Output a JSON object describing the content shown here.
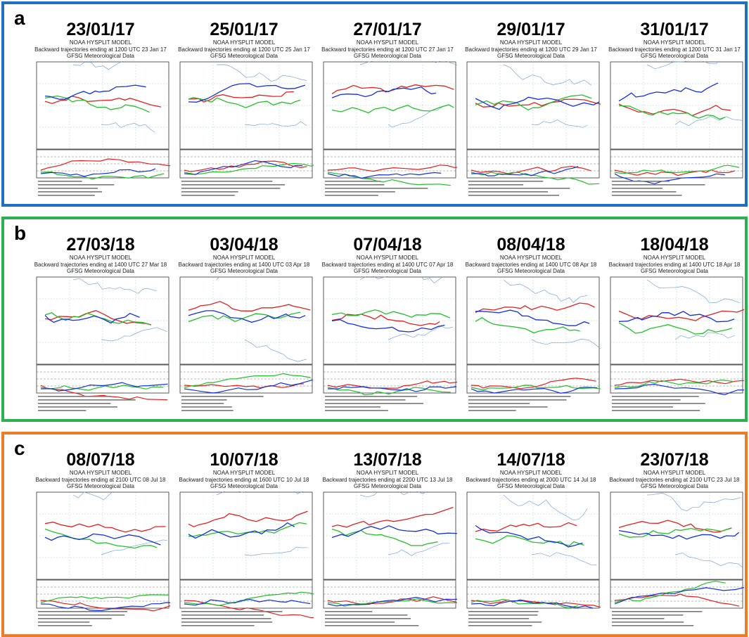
{
  "groups": [
    {
      "label": "a",
      "panels": [
        {
          "date": "23/01/17",
          "model": "NOAA HYSPLIT MODEL",
          "subtitle": "Backward trajectories ending at 1200 UTC 23 Jan 17",
          "met": "GFSG Meteorological Data"
        },
        {
          "date": "25/01/17",
          "model": "NOAA HYSPLIT MODEL",
          "subtitle": "Backward trajectories ending at 1200 UTC 25 Jan 17",
          "met": "GFSG Meteorological Data"
        },
        {
          "date": "27/01/17",
          "model": "NOAA HYSPLIT MODEL",
          "subtitle": "Backward trajectories ending at 1200 UTC 27 Jan 17",
          "met": "GFSG Meteorological Data"
        },
        {
          "date": "29/01/17",
          "model": "NOAA HYSPLIT MODEL",
          "subtitle": "Backward trajectories ending at 1200 UTC 29 Jan 17",
          "met": "GFSG Meteorological Data"
        },
        {
          "date": "31/01/17",
          "model": "NOAA HYSPLIT MODEL",
          "subtitle": "Backward trajectories ending at 1200 UTC 31 Jan 17",
          "met": "GFSG Meteorological Data"
        }
      ]
    },
    {
      "label": "b",
      "panels": [
        {
          "date": "27/03/18",
          "model": "NOAA HYSPLIT MODEL",
          "subtitle": "Backward trajectories ending at 1400 UTC 27 Mar 18",
          "met": "GFSG Meteorological Data"
        },
        {
          "date": "03/04/18",
          "model": "NOAA HYSPLIT MODEL",
          "subtitle": "Backward trajectories ending at 1400 UTC 03 Apr 18",
          "met": "GFSG Meteorological Data"
        },
        {
          "date": "07/04/18",
          "model": "NOAA HYSPLIT MODEL",
          "subtitle": "Backward trajectories ending at 1400 UTC 07 Apr 18",
          "met": "GFSG Meteorological Data"
        },
        {
          "date": "08/04/18",
          "model": "NOAA HYSPLIT MODEL",
          "subtitle": "Backward trajectories ending at 1400 UTC 08 Apr 18",
          "met": "GFSG Meteorological Data"
        },
        {
          "date": "18/04/18",
          "model": "NOAA HYSPLIT MODEL",
          "subtitle": "Backward trajectories ending at 1400 UTC 18 Apr 18",
          "met": "GFSG Meteorological Data"
        }
      ]
    },
    {
      "label": "c",
      "panels": [
        {
          "date": "08/07/18",
          "model": "NOAA HYSPLIT MODEL",
          "subtitle": "Backward trajectories ending at 2100 UTC 08 Jul 18",
          "met": "GFSG Meteorological Data"
        },
        {
          "date": "10/07/18",
          "model": "NOAA HYSPLIT MODEL",
          "subtitle": "Backward trajectories ending at 1600 UTC 10 Jul 18",
          "met": "GFSG Meteorological Data"
        },
        {
          "date": "13/07/18",
          "model": "NOAA HYSPLIT MODEL",
          "subtitle": "Backward trajectories ending at 2200 UTC 13 Jul 18",
          "met": "GFSG Meteorological Data"
        },
        {
          "date": "14/07/18",
          "model": "NOAA HYSPLIT MODEL",
          "subtitle": "Backward trajectories ending at 2000 UTC 14 Jul 18",
          "met": "GFSG Meteorological Data"
        },
        {
          "date": "23/07/18",
          "model": "NOAA HYSPLIT MODEL",
          "subtitle": "Backward trajectories ending at 2100 UTC 23 Jul 18",
          "met": "GFSG Meteorological Data"
        }
      ]
    }
  ]
}
